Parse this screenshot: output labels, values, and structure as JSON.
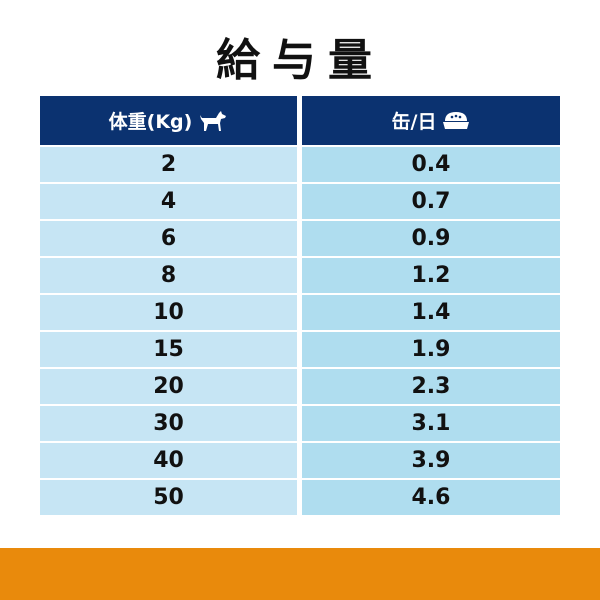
{
  "title": "給与量",
  "headers": {
    "weight": "体重(Kg)",
    "cans": "缶/日",
    "weight_icon": "dog-icon",
    "cans_icon": "food-bowl-icon"
  },
  "rows": [
    {
      "weight": "2",
      "cans": "0.4"
    },
    {
      "weight": "4",
      "cans": "0.7"
    },
    {
      "weight": "6",
      "cans": "0.9"
    },
    {
      "weight": "8",
      "cans": "1.2"
    },
    {
      "weight": "10",
      "cans": "1.4"
    },
    {
      "weight": "15",
      "cans": "1.9"
    },
    {
      "weight": "20",
      "cans": "2.3"
    },
    {
      "weight": "30",
      "cans": "3.1"
    },
    {
      "weight": "40",
      "cans": "3.9"
    },
    {
      "weight": "50",
      "cans": "4.6"
    }
  ],
  "colors": {
    "header": "#0b3270",
    "left_cell": "#c6e5f4",
    "right_cell": "#afddef",
    "bottom_bar": "#e98a0c"
  }
}
